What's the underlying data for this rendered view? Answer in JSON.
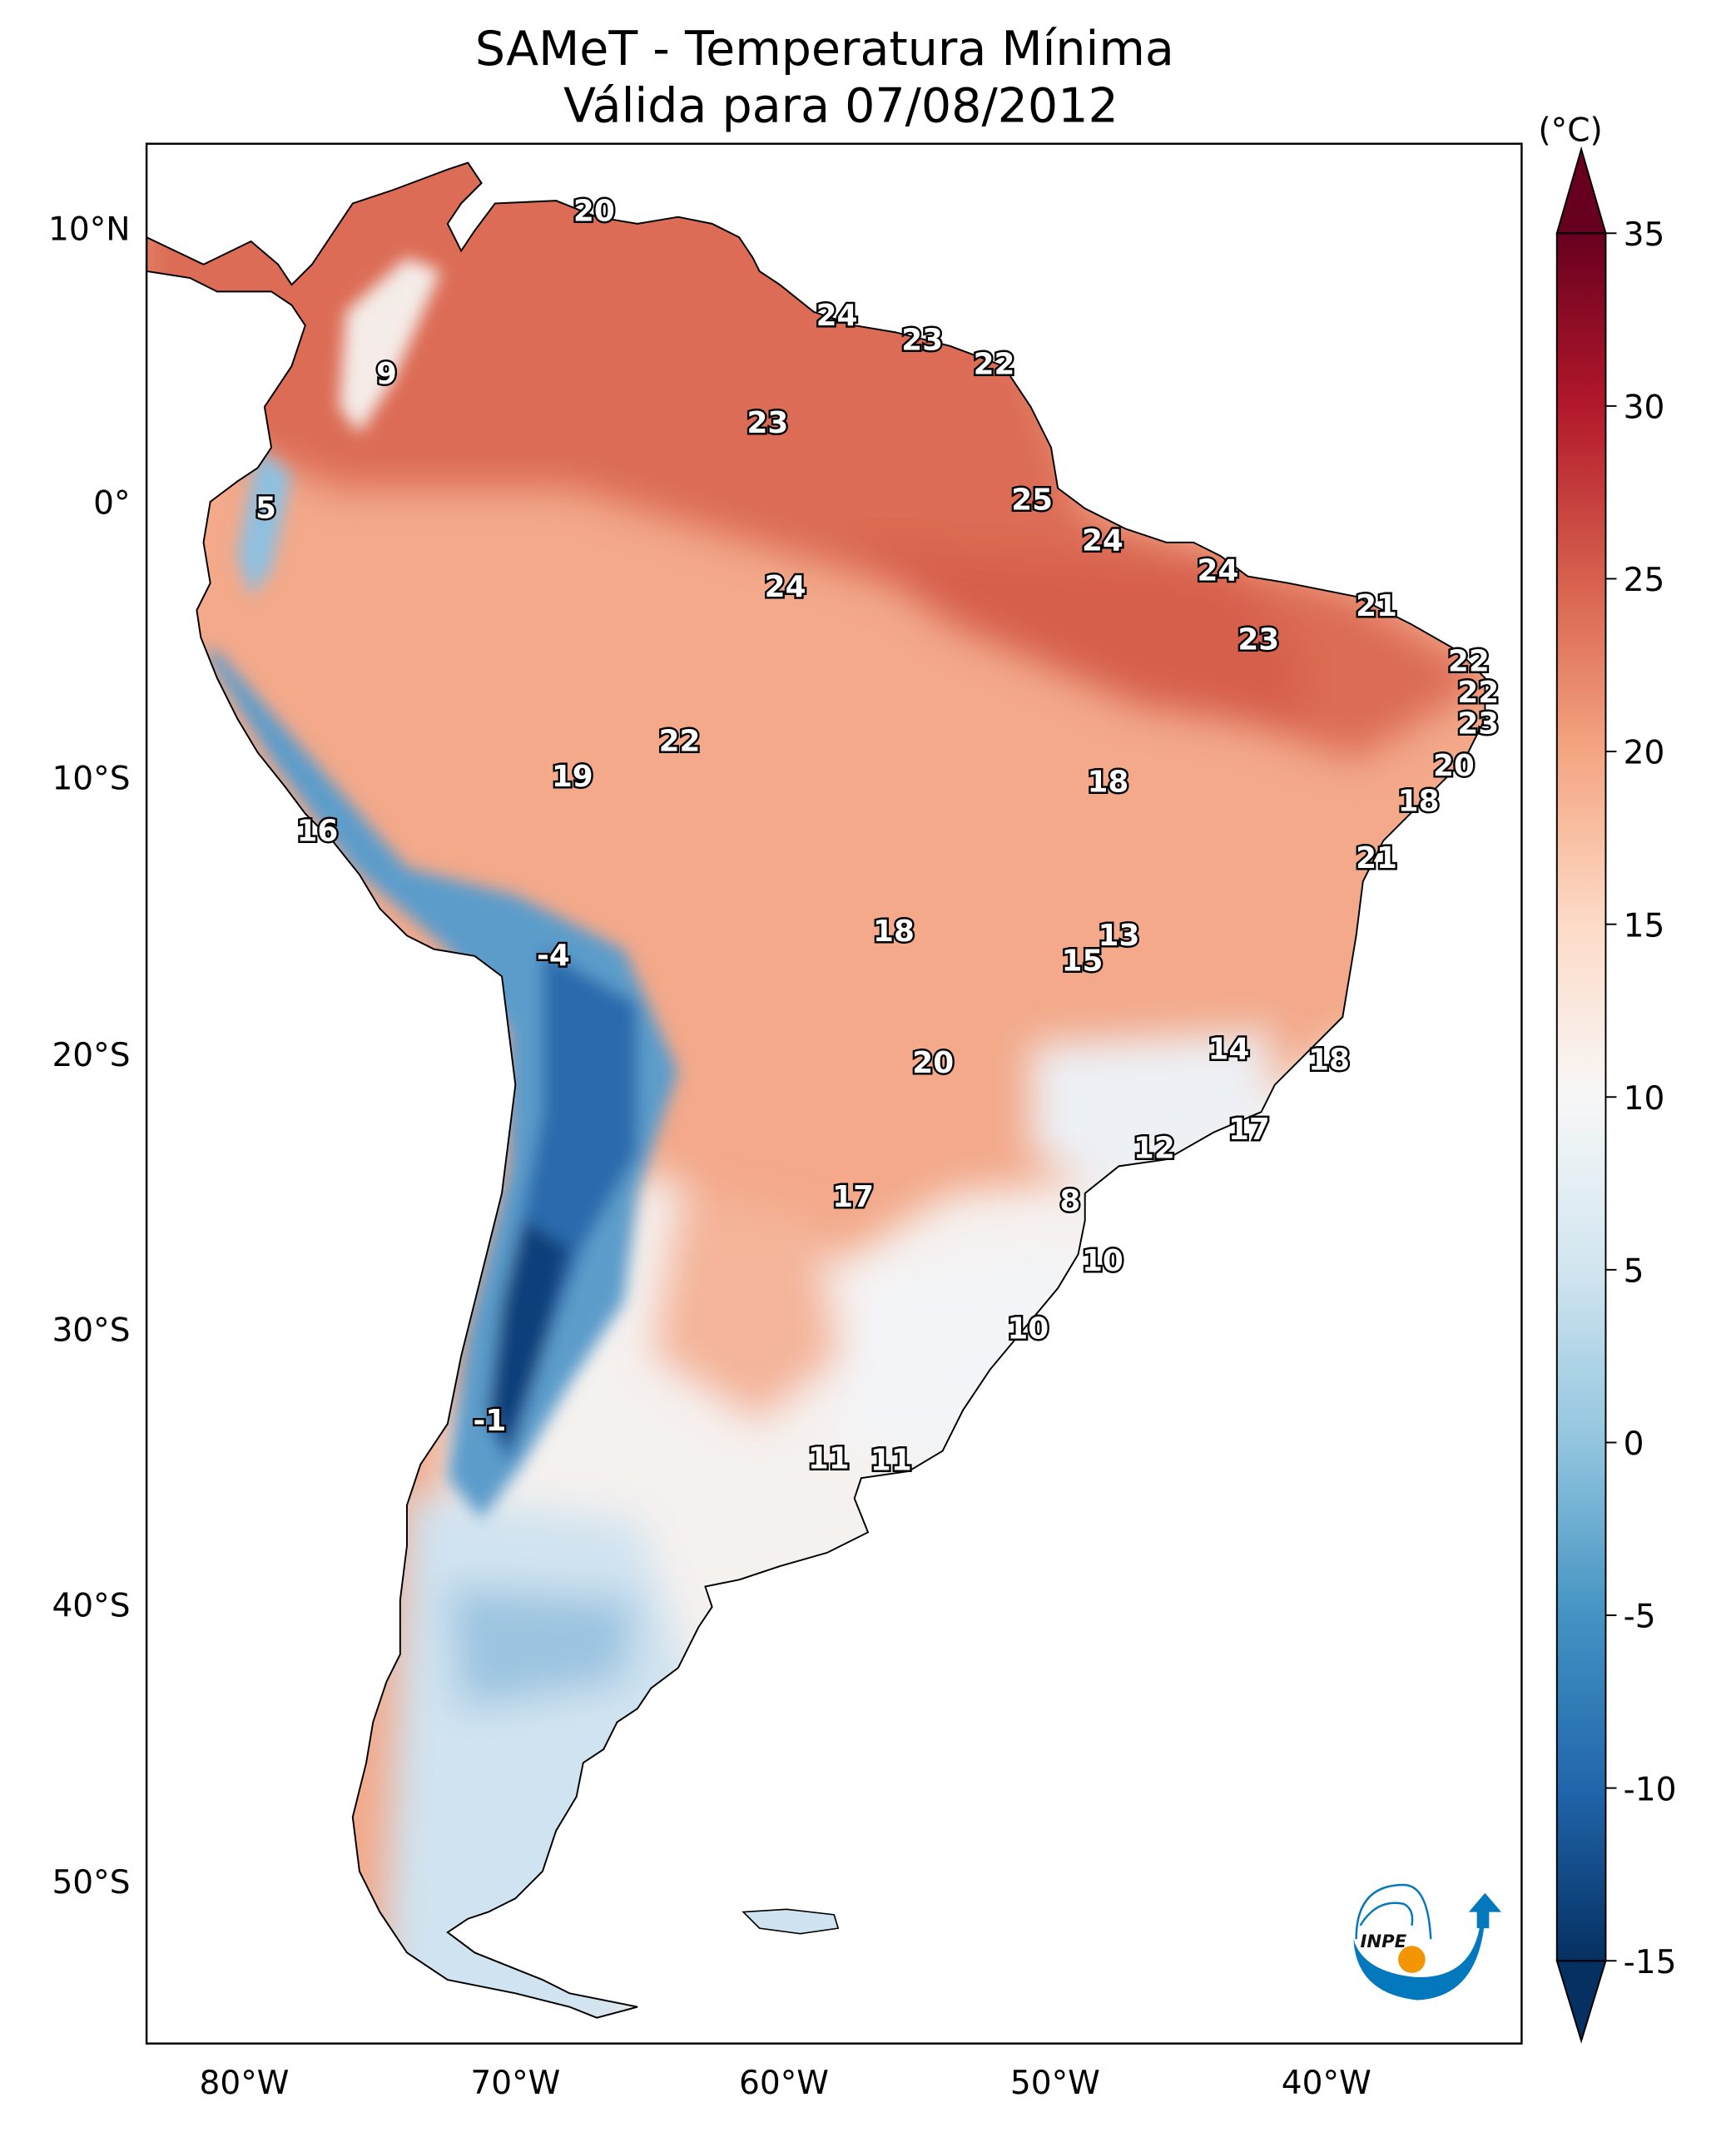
{
  "title": {
    "line1": "SAMeT - Temperatura Mínima",
    "line2": "Válida para 07/08/2012"
  },
  "map": {
    "lat_ticks": [
      "10°N",
      "0°",
      "10°S",
      "20°S",
      "30°S",
      "40°S",
      "50°S"
    ],
    "lon_ticks": [
      "80°W",
      "70°W",
      "60°W",
      "50°W",
      "40°W"
    ],
    "labels": [
      "20",
      "9",
      "24",
      "23",
      "22",
      "23",
      "5",
      "25",
      "24",
      "24",
      "24",
      "21",
      "23",
      "22",
      "22",
      "23",
      "22",
      "20",
      "19",
      "18",
      "18",
      "16",
      "21",
      "18",
      "13",
      "15",
      "-4",
      "14",
      "20",
      "18",
      "17",
      "12",
      "17",
      "8",
      "10",
      "10",
      "-1",
      "11",
      "11"
    ]
  },
  "colorbar": {
    "unit": "(°C)",
    "range": [
      -15,
      35
    ],
    "extend": "both",
    "ticks": [
      "35",
      "30",
      "25",
      "20",
      "15",
      "10",
      "5",
      "0",
      "-5",
      "-10",
      "-15"
    ],
    "colormap": [
      "#053061",
      "#2166ac",
      "#4393c3",
      "#92c5de",
      "#d1e5f0",
      "#f7f7f7",
      "#fddbc7",
      "#f4a582",
      "#d6604d",
      "#b2182b",
      "#67001f"
    ]
  },
  "logo": {
    "text": "INPE",
    "colors": {
      "blue": "#0478bc",
      "orange": "#f29500"
    }
  }
}
